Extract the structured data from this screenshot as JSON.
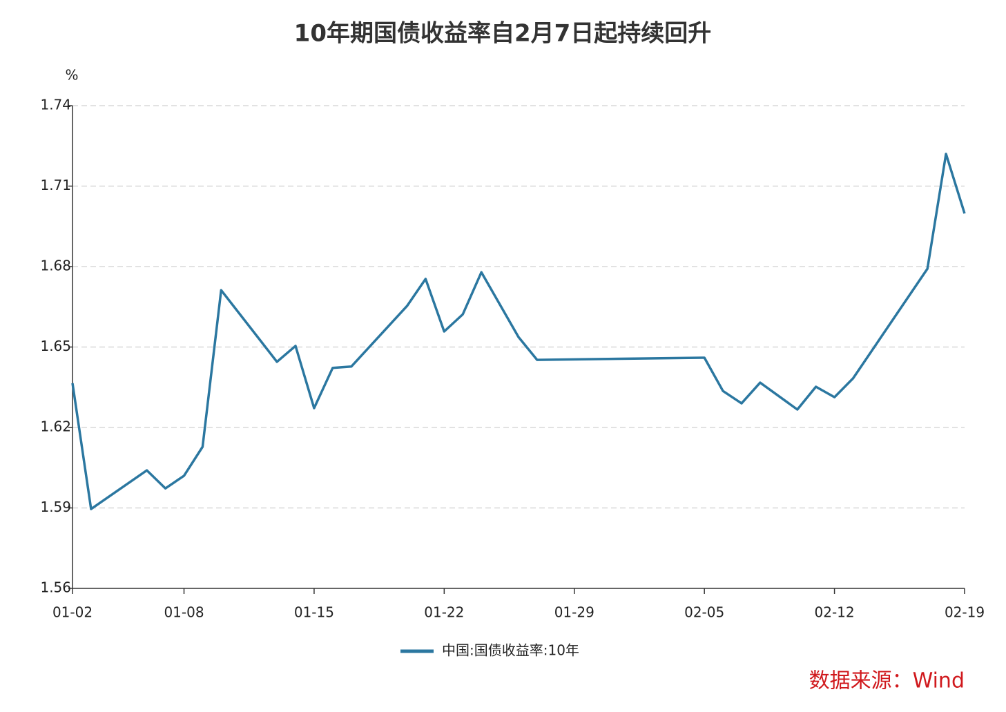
{
  "chart_data": {
    "type": "line",
    "title": "10年期国债收益率自2月7日起持续回升",
    "y_label": "%",
    "source": "数据来源：Wind",
    "x": [
      "01-02",
      "01-03",
      "01-06",
      "01-07",
      "01-08",
      "01-09",
      "01-10",
      "01-13",
      "01-14",
      "01-15",
      "01-16",
      "01-17",
      "01-20",
      "01-21",
      "01-22",
      "01-23",
      "01-24",
      "01-26",
      "01-27",
      "02-05",
      "02-06",
      "02-07",
      "02-08",
      "02-10",
      "02-11",
      "02-12",
      "02-13",
      "02-17",
      "02-18",
      "02-19"
    ],
    "series": [
      {
        "name": "中国:国债收益率:10年",
        "color": "#2b77a0",
        "values": [
          1.6365,
          1.5896,
          1.604,
          1.5973,
          1.602,
          1.6128,
          1.6712,
          1.6445,
          1.6504,
          1.6272,
          1.6422,
          1.6427,
          1.6653,
          1.6754,
          1.6558,
          1.6622,
          1.6779,
          1.6537,
          1.6452,
          1.646,
          1.6336,
          1.629,
          1.6367,
          1.6267,
          1.6352,
          1.6313,
          1.6383,
          1.6792,
          1.722,
          1.6998
        ]
      }
    ],
    "xlim": [
      "01-02",
      "02-19"
    ],
    "xticks": [
      "01-02",
      "01-08",
      "01-15",
      "01-22",
      "01-29",
      "02-05",
      "02-12",
      "02-19"
    ],
    "ylim": [
      1.56,
      1.74
    ],
    "yticks": [
      1.56,
      1.59,
      1.62,
      1.65,
      1.68,
      1.71,
      1.74
    ],
    "grid": true
  }
}
